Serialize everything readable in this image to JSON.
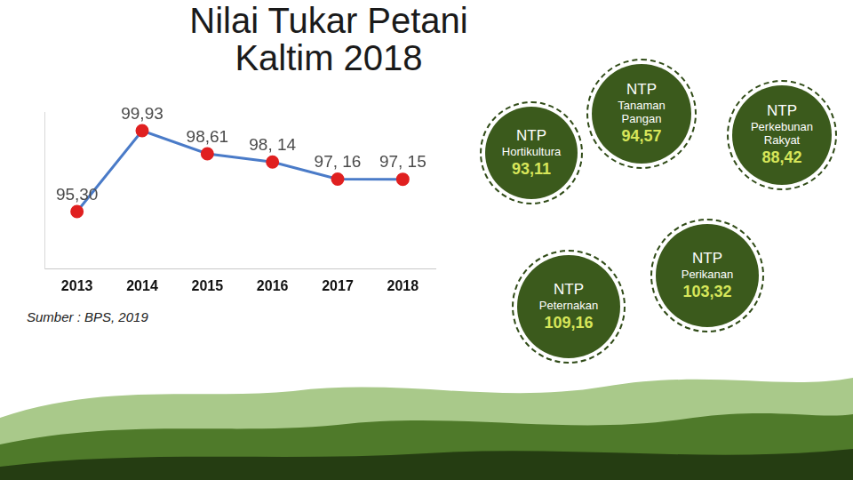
{
  "chart_data": {
    "type": "line",
    "title": "Nilai Tukar Petani Kaltim 2018",
    "categories": [
      "2013",
      "2014",
      "2015",
      "2016",
      "2017",
      "2018"
    ],
    "values": [
      95.3,
      99.93,
      98.61,
      98.14,
      97.16,
      97.15
    ],
    "value_labels": [
      "95,30",
      "99,93",
      "98,61",
      "98, 14",
      "97, 16",
      "97, 15"
    ],
    "data_labels": true,
    "color": "#4a7bc8",
    "colors": [
      "#e02020",
      "#e02020",
      "#e02020",
      "#e02020",
      "#e02020",
      "#e02020"
    ],
    "marker": "circle",
    "grid": false,
    "tick_labels": "x",
    "ylim": [
      92,
      101
    ],
    "annotations": [
      "Sumber : BPS, 2019"
    ]
  },
  "subsectors": [
    {
      "label": "NTP",
      "name": "Hortikultura",
      "value": "93,11"
    },
    {
      "label": "NTP",
      "name": "Tanaman Pangan",
      "value": "94,57"
    },
    {
      "label": "NTP",
      "name": "Perkebunan Rakyat",
      "value": "88,42"
    },
    {
      "label": "NTP",
      "name": "Perikanan",
      "value": "103,32"
    },
    {
      "label": "NTP",
      "name": "Peternakan",
      "value": "109,16"
    }
  ]
}
